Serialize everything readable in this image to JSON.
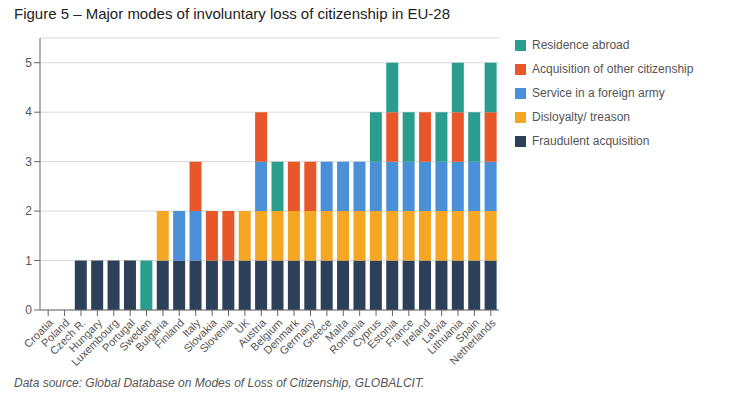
{
  "chart_data": {
    "type": "bar",
    "title": "Figure 5 – Major modes of involuntary loss of citizenship in EU-28",
    "annotations": [
      "Data source: Global Database on Modes of Loss of Citizenship, GLOBALCIT."
    ],
    "categories": [
      "Croatia",
      "Poland",
      "Czech R.",
      "Hungary",
      "Luxembourg",
      "Portugal",
      "Sweden",
      "Bulgaria",
      "Finland",
      "Italy",
      "Slovakia",
      "Slovenia",
      "UK",
      "Austria",
      "Belgium",
      "Denmark",
      "Germany",
      "Greece",
      "Malta",
      "Romania",
      "Cyprus",
      "Estonia",
      "France",
      "Ireland",
      "Latvia",
      "Lithuania",
      "Spain",
      "Netherlands"
    ],
    "series": [
      {
        "name": "Fraudulent acquisition",
        "color": "#2d4059",
        "values": [
          0,
          0,
          1,
          1,
          1,
          1,
          0,
          1,
          1,
          1,
          1,
          1,
          1,
          1,
          1,
          1,
          1,
          1,
          1,
          1,
          1,
          1,
          1,
          1,
          1,
          1,
          1,
          1
        ]
      },
      {
        "name": "Disloyalty/ treason",
        "color": "#f5a623",
        "values": [
          0,
          0,
          0,
          0,
          0,
          0,
          0,
          1,
          0,
          0,
          0,
          0,
          1,
          1,
          1,
          1,
          1,
          1,
          1,
          1,
          1,
          1,
          1,
          1,
          1,
          1,
          1,
          1
        ]
      },
      {
        "name": "Service in a foreign army",
        "color": "#4a90d9",
        "values": [
          0,
          0,
          0,
          0,
          0,
          0,
          0,
          0,
          1,
          1,
          0,
          0,
          0,
          1,
          0,
          0,
          0,
          1,
          1,
          1,
          1,
          1,
          1,
          1,
          1,
          1,
          1,
          1
        ]
      },
      {
        "name": "Acquisition of other citizenship",
        "color": "#e8572a",
        "values": [
          0,
          0,
          0,
          0,
          0,
          0,
          0,
          0,
          0,
          1,
          1,
          1,
          0,
          1,
          0,
          1,
          1,
          0,
          0,
          0,
          0,
          1,
          0,
          1,
          0,
          1,
          0,
          1
        ]
      },
      {
        "name": "Residence abroad",
        "color": "#2a9d8f",
        "values": [
          0,
          0,
          0,
          0,
          0,
          0,
          1,
          0,
          0,
          0,
          0,
          0,
          0,
          0,
          1,
          0,
          0,
          0,
          0,
          0,
          1,
          1,
          1,
          0,
          1,
          1,
          1,
          1
        ]
      }
    ],
    "stacked": true,
    "ylim": [
      0,
      5.5
    ],
    "yticks": [
      0,
      1,
      2,
      3,
      4,
      5
    ],
    "grid": true,
    "legend": "right"
  }
}
